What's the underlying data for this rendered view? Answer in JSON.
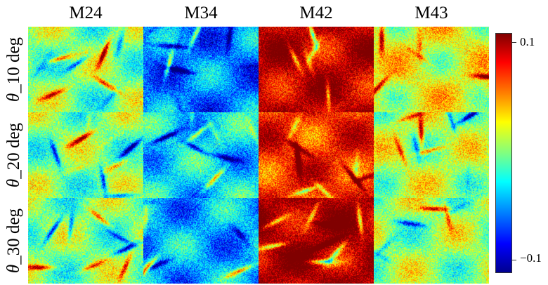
{
  "columns": [
    "M24",
    "M34",
    "M42",
    "M43"
  ],
  "rows": [
    {
      "symbol": "θ",
      "label": "_10 deg"
    },
    {
      "symbol": "θ",
      "label": "_20 deg"
    },
    {
      "symbol": "θ",
      "label": "_30 deg"
    }
  ],
  "colorbar": {
    "max_label": "0.1",
    "min_label": "−0.1",
    "range": [
      -0.1,
      0.1
    ],
    "colormap": "jet",
    "colors": [
      "#00008f",
      "#0000ff",
      "#0080ff",
      "#00ffff",
      "#80ff80",
      "#ffff00",
      "#ff8000",
      "#ff0000",
      "#800000"
    ]
  },
  "panel_bias": [
    [
      0.0,
      -0.05,
      0.09,
      0.02
    ],
    [
      0.0,
      -0.03,
      0.07,
      0.01
    ],
    [
      0.0,
      -0.04,
      0.095,
      0.005
    ]
  ]
}
